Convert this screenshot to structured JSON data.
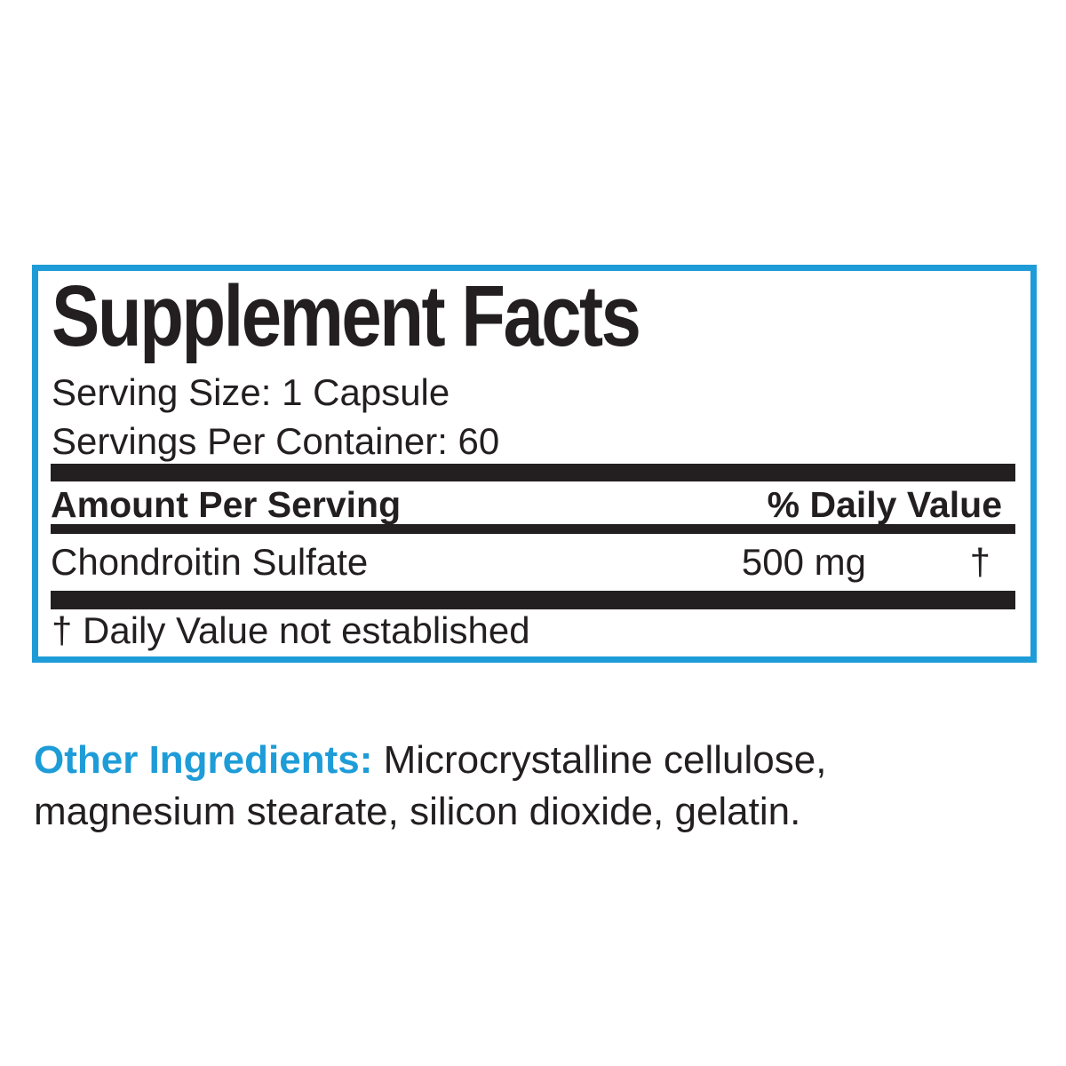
{
  "colors": {
    "accent_blue": "#1e9cd8",
    "ink_black": "#231f20"
  },
  "supplement_facts": {
    "title": "Supplement Facts",
    "serving_size": "Serving Size: 1 Capsule",
    "servings_per_container": "Servings Per Container: 60",
    "columns": {
      "amount": "Amount Per Serving",
      "daily_value": "% Daily Value"
    },
    "rows": [
      {
        "name": "Chondroitin Sulfate",
        "amount": "500 mg",
        "daily_value": "†"
      }
    ],
    "footnote": "† Daily Value not established"
  },
  "other_ingredients": {
    "label": "Other Ingredients:",
    "text": " Microcrystalline cellulose, magnesium stearate, silicon dioxide, gelatin."
  }
}
